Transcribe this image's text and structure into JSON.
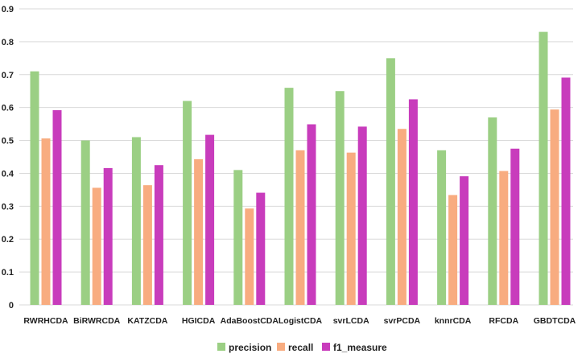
{
  "chart_data": {
    "type": "bar",
    "title": "",
    "xlabel": "",
    "ylabel": "",
    "ylim": [
      0,
      0.9
    ],
    "yticks": [
      "0",
      "0.1",
      "0.2",
      "0.3",
      "0.4",
      "0.5",
      "0.6",
      "0.7",
      "0.8",
      "0.9"
    ],
    "grid": true,
    "legend_position": "bottom",
    "categories": [
      "RWRHCDA",
      "BiRWRCDA",
      "KATZCDA",
      "HGICDA",
      "AdaBoostCDA",
      "LogistCDA",
      "svrLCDA",
      "svrPCDA",
      "knnrCDA",
      "RFCDA",
      "GBDTCDA"
    ],
    "series": [
      {
        "name": "precision",
        "color": "#9bcf84",
        "values": [
          0.71,
          0.5,
          0.51,
          0.62,
          0.41,
          0.66,
          0.65,
          0.75,
          0.47,
          0.57,
          0.83
        ]
      },
      {
        "name": "recall",
        "color": "#f8ac80",
        "values": [
          0.506,
          0.356,
          0.364,
          0.443,
          0.293,
          0.47,
          0.463,
          0.535,
          0.334,
          0.407,
          0.594
        ]
      },
      {
        "name": "f1_measure",
        "color": "#c83cbc",
        "values": [
          0.592,
          0.416,
          0.425,
          0.517,
          0.341,
          0.549,
          0.542,
          0.625,
          0.391,
          0.475,
          0.691
        ]
      }
    ]
  }
}
